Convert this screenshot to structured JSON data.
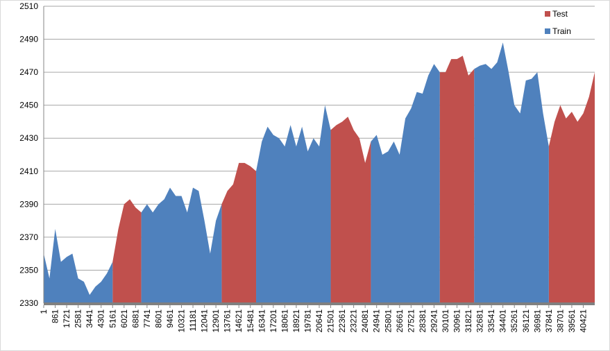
{
  "chart_data": {
    "type": "area",
    "categories": [
      "1",
      null,
      "861",
      null,
      "1721",
      null,
      "2581",
      null,
      "3441",
      null,
      "4301",
      null,
      "5161",
      null,
      "6021",
      null,
      "6881",
      null,
      "7741",
      null,
      "8601",
      null,
      "9461",
      null,
      "10321",
      null,
      "11181",
      null,
      "12041",
      null,
      "12901",
      null,
      "13761",
      null,
      "14621",
      null,
      "15481",
      null,
      "16341",
      null,
      "17201",
      null,
      "18061",
      null,
      "18921",
      null,
      "19781",
      null,
      "20641",
      null,
      "21501",
      null,
      "22361",
      null,
      "23221",
      null,
      "24081",
      null,
      "24941",
      null,
      "25801",
      null,
      "26661",
      null,
      "27521",
      null,
      "28381",
      null,
      "29241",
      null,
      "30101",
      null,
      "30961",
      null,
      "31821",
      null,
      "32681",
      null,
      "33541",
      null,
      "34401",
      null,
      "35261",
      null,
      "36121",
      null,
      "36981",
      null,
      "37841",
      null,
      "38701",
      null,
      "39561",
      null,
      "40421",
      null,
      null
    ],
    "series": [
      {
        "name": "Test",
        "color": "#c0504d",
        "values": [
          null,
          null,
          null,
          null,
          null,
          null,
          null,
          null,
          null,
          null,
          null,
          null,
          2355,
          2375,
          2390,
          2393,
          2388,
          2385,
          null,
          null,
          null,
          null,
          null,
          null,
          null,
          null,
          null,
          null,
          null,
          null,
          null,
          2390,
          2398,
          2402,
          2415,
          2415,
          2413,
          2410,
          null,
          null,
          null,
          null,
          null,
          null,
          null,
          null,
          null,
          null,
          null,
          null,
          2435,
          2438,
          2440,
          2443,
          2435,
          2430,
          2415,
          2428,
          null,
          null,
          null,
          null,
          null,
          null,
          null,
          null,
          null,
          null,
          null,
          2470,
          2470,
          2478,
          2478,
          2480,
          2468,
          2472,
          null,
          null,
          null,
          null,
          null,
          null,
          null,
          null,
          null,
          null,
          null,
          null,
          2425,
          2440,
          2450,
          2442,
          2446,
          2440,
          2445,
          2455,
          2470
        ]
      },
      {
        "name": "Train",
        "color": "#4f81bd",
        "values": [
          2360,
          2345,
          2375,
          2355,
          2358,
          2360,
          2345,
          2343,
          2335,
          2340,
          2343,
          2348,
          2355,
          null,
          null,
          null,
          null,
          2385,
          2390,
          2385,
          2390,
          2393,
          2400,
          2395,
          2395,
          2385,
          2400,
          2398,
          2380,
          2360,
          2380,
          2390,
          null,
          null,
          null,
          null,
          null,
          2410,
          2428,
          2437,
          2432,
          2430,
          2425,
          2438,
          2425,
          2437,
          2422,
          2430,
          2425,
          2450,
          2435,
          null,
          null,
          null,
          null,
          null,
          null,
          2428,
          2432,
          2420,
          2422,
          2428,
          2420,
          2442,
          2448,
          2458,
          2457,
          2468,
          2475,
          2470,
          null,
          null,
          null,
          null,
          null,
          2472,
          2474,
          2475,
          2472,
          2476,
          2488,
          2470,
          2450,
          2445,
          2465,
          2466,
          2470,
          2445,
          2425,
          null,
          null,
          null,
          null,
          null,
          null,
          null,
          null
        ]
      }
    ],
    "ylim": [
      2330,
      2510
    ],
    "yticks": [
      2330,
      2350,
      2370,
      2390,
      2410,
      2430,
      2450,
      2470,
      2490,
      2510
    ],
    "grid": true,
    "legend": "top-right"
  }
}
